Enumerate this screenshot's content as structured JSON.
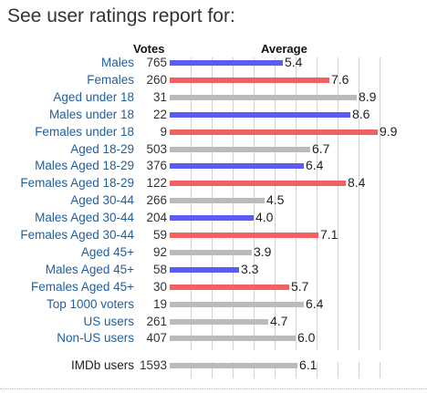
{
  "title": "See user ratings report for:",
  "headers": {
    "votes": "Votes",
    "average": "Average"
  },
  "scale": {
    "max": 10
  },
  "colors": {
    "male": "#5c5cf0",
    "female": "#f06262",
    "neutral": "#bbbbbb",
    "link": "#1f5f9f"
  },
  "rows": [
    {
      "label": "Males",
      "votes": "765",
      "average": 5.4,
      "avg_text": "5.4",
      "group": "male",
      "link": true
    },
    {
      "label": "Females",
      "votes": "260",
      "average": 7.6,
      "avg_text": "7.6",
      "group": "female",
      "link": true
    },
    {
      "label": "Aged under 18",
      "votes": "31",
      "average": 8.9,
      "avg_text": "8.9",
      "group": "neutral",
      "link": true
    },
    {
      "label": "Males under 18",
      "votes": "22",
      "average": 8.6,
      "avg_text": "8.6",
      "group": "male",
      "link": true
    },
    {
      "label": "Females under 18",
      "votes": "9",
      "average": 9.9,
      "avg_text": "9.9",
      "group": "female",
      "link": true
    },
    {
      "label": "Aged 18-29",
      "votes": "503",
      "average": 6.7,
      "avg_text": "6.7",
      "group": "neutral",
      "link": true
    },
    {
      "label": "Males Aged 18-29",
      "votes": "376",
      "average": 6.4,
      "avg_text": "6.4",
      "group": "male",
      "link": true
    },
    {
      "label": "Females Aged 18-29",
      "votes": "122",
      "average": 8.4,
      "avg_text": "8.4",
      "group": "female",
      "link": true
    },
    {
      "label": "Aged 30-44",
      "votes": "266",
      "average": 4.5,
      "avg_text": "4.5",
      "group": "neutral",
      "link": true
    },
    {
      "label": "Males Aged 30-44",
      "votes": "204",
      "average": 4.0,
      "avg_text": "4.0",
      "group": "male",
      "link": true
    },
    {
      "label": "Females Aged 30-44",
      "votes": "59",
      "average": 7.1,
      "avg_text": "7.1",
      "group": "female",
      "link": true
    },
    {
      "label": "Aged 45+",
      "votes": "92",
      "average": 3.9,
      "avg_text": "3.9",
      "group": "neutral",
      "link": true
    },
    {
      "label": "Males Aged 45+",
      "votes": "58",
      "average": 3.3,
      "avg_text": "3.3",
      "group": "male",
      "link": true
    },
    {
      "label": "Females Aged 45+",
      "votes": "30",
      "average": 5.7,
      "avg_text": "5.7",
      "group": "female",
      "link": true
    },
    {
      "label": "Top 1000 voters",
      "votes": "19",
      "average": 6.4,
      "avg_text": "6.4",
      "group": "neutral",
      "link": true
    },
    {
      "label": "US users",
      "votes": "261",
      "average": 4.7,
      "avg_text": "4.7",
      "group": "neutral",
      "link": true
    },
    {
      "label": "Non-US users",
      "votes": "407",
      "average": 6.0,
      "avg_text": "6.0",
      "group": "neutral",
      "link": true
    }
  ],
  "summary": {
    "label": "IMDb users",
    "votes": "1593",
    "average": 6.1,
    "avg_text": "6.1",
    "group": "neutral",
    "link": false
  }
}
